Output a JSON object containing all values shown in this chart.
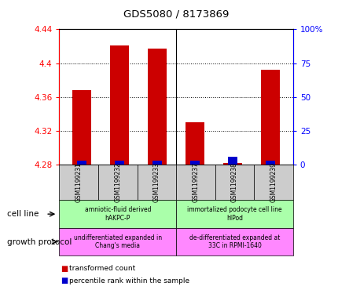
{
  "title": "GDS5080 / 8173869",
  "samples": [
    "GSM1199231",
    "GSM1199232",
    "GSM1199233",
    "GSM1199237",
    "GSM1199238",
    "GSM1199239"
  ],
  "red_values": [
    4.368,
    4.421,
    4.417,
    4.33,
    4.282,
    4.392
  ],
  "blue_pcts": [
    3,
    3,
    3,
    3,
    6,
    3
  ],
  "y_min": 4.28,
  "y_max": 4.44,
  "y_ticks_left": [
    4.28,
    4.32,
    4.36,
    4.4,
    4.44
  ],
  "y_ticks_right": [
    0,
    25,
    50,
    75,
    100
  ],
  "cell_line_groups": [
    {
      "label": "amniotic-fluid derived\nhAKPC-P",
      "start": 0,
      "end": 3,
      "color": "#aaffaa"
    },
    {
      "label": "immortalized podocyte cell line\nhIPod",
      "start": 3,
      "end": 6,
      "color": "#aaffaa"
    }
  ],
  "growth_protocol_groups": [
    {
      "label": "undifferentiated expanded in\nChang's media",
      "start": 0,
      "end": 3,
      "color": "#ff88ff"
    },
    {
      "label": "de-differentiated expanded at\n33C in RPMI-1640",
      "start": 3,
      "end": 6,
      "color": "#ff88ff"
    }
  ],
  "legend_red_label": "transformed count",
  "legend_blue_label": "percentile rank within the sample",
  "cell_line_label": "cell line",
  "growth_protocol_label": "growth protocol",
  "bar_color_red": "#cc0000",
  "bar_color_blue": "#0000cc",
  "background_color": "#ffffff"
}
